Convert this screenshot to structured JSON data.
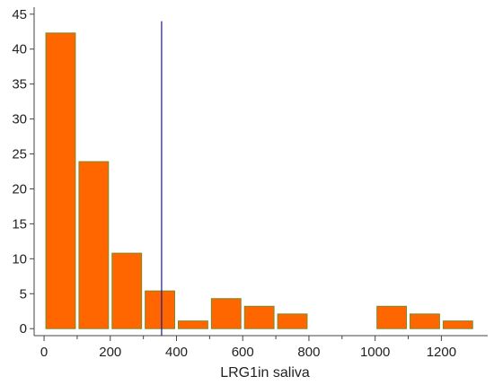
{
  "chart_data": {
    "type": "bar",
    "title": "",
    "xlabel": "LRG1in saliva",
    "ylabel": "",
    "xlim": [
      -30,
      1340
    ],
    "ylim": [
      -1,
      46
    ],
    "x_ticks": [
      0,
      200,
      400,
      600,
      800,
      1000,
      1200
    ],
    "y_ticks": [
      0,
      5,
      10,
      15,
      20,
      25,
      30,
      35,
      40,
      45
    ],
    "bin_width": 100,
    "bins": [
      {
        "x0": 0,
        "x1": 100,
        "value": 42.3
      },
      {
        "x0": 100,
        "x1": 200,
        "value": 23.9
      },
      {
        "x0": 200,
        "x1": 300,
        "value": 10.8
      },
      {
        "x0": 300,
        "x1": 400,
        "value": 5.4
      },
      {
        "x0": 400,
        "x1": 500,
        "value": 1.1
      },
      {
        "x0": 500,
        "x1": 600,
        "value": 4.3
      },
      {
        "x0": 600,
        "x1": 700,
        "value": 3.2
      },
      {
        "x0": 700,
        "x1": 800,
        "value": 2.1
      },
      {
        "x0": 1000,
        "x1": 1100,
        "value": 3.2
      },
      {
        "x0": 1100,
        "x1": 1200,
        "value": 2.1
      },
      {
        "x0": 1200,
        "x1": 1300,
        "value": 1.1
      }
    ],
    "reference_line": {
      "x": 355,
      "y_top": 44
    },
    "colors": {
      "bar_fill": "#ff6600",
      "bar_stroke": "#7a8a2a",
      "reference_line": "#1a1aa0",
      "axis": "#444444"
    },
    "grid": false,
    "legend": "none"
  }
}
